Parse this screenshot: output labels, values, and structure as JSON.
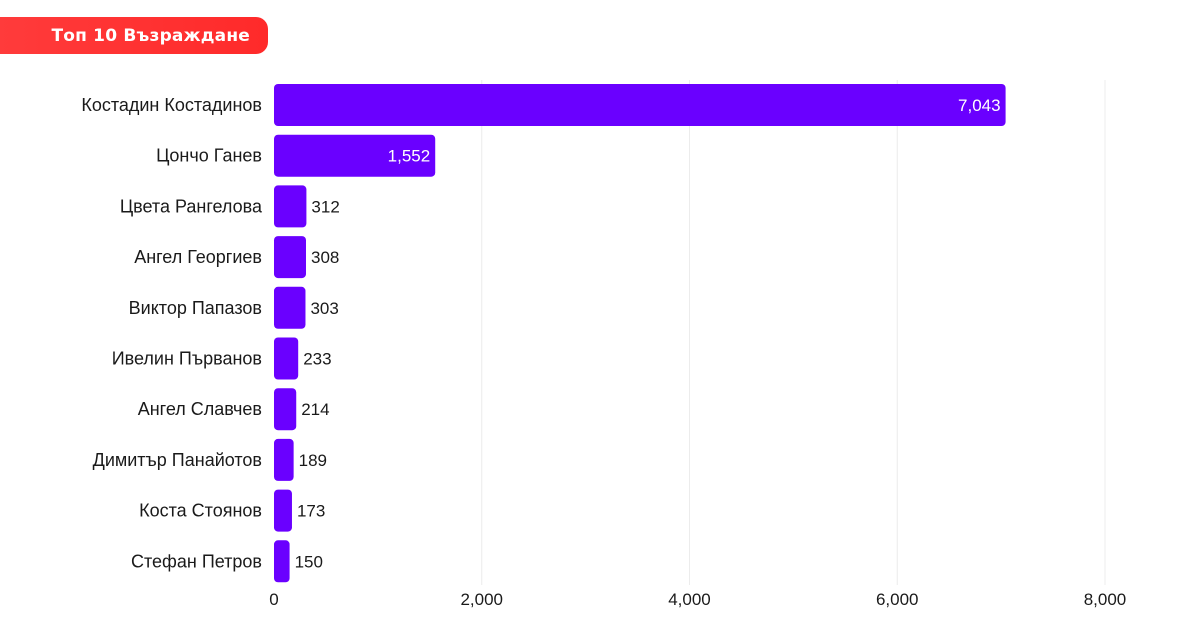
{
  "header": {
    "title": "Топ 10 Възраждане"
  },
  "colors": {
    "bar": "#6a00ff",
    "badge": "#ff3030",
    "grid": "#ececec",
    "text": "#1a1a1a",
    "label_inside": "#ffffff"
  },
  "chart_data": {
    "type": "bar",
    "orientation": "horizontal",
    "title": "Топ 10 Възраждане",
    "categories": [
      "Костадин Костадинов",
      "Цончо Ганев",
      "Цвета Рангелова",
      "Ангел Георгиев",
      "Виктор Папазов",
      "Ивелин Първанов",
      "Ангел Славчев",
      "Димитър Панайотов",
      "Коста Стоянов",
      "Стефан Петров"
    ],
    "values": [
      7043,
      1552,
      312,
      308,
      303,
      233,
      214,
      189,
      173,
      150
    ],
    "value_labels": [
      "7,043",
      "1,552",
      "312",
      "308",
      "303",
      "233",
      "214",
      "189",
      "173",
      "150"
    ],
    "xlim": [
      0,
      8000
    ],
    "xticks": [
      0,
      2000,
      4000,
      6000,
      8000
    ],
    "xtick_labels": [
      "0",
      "2,000",
      "4,000",
      "6,000",
      "8,000"
    ],
    "grid": true,
    "legend": "none"
  }
}
